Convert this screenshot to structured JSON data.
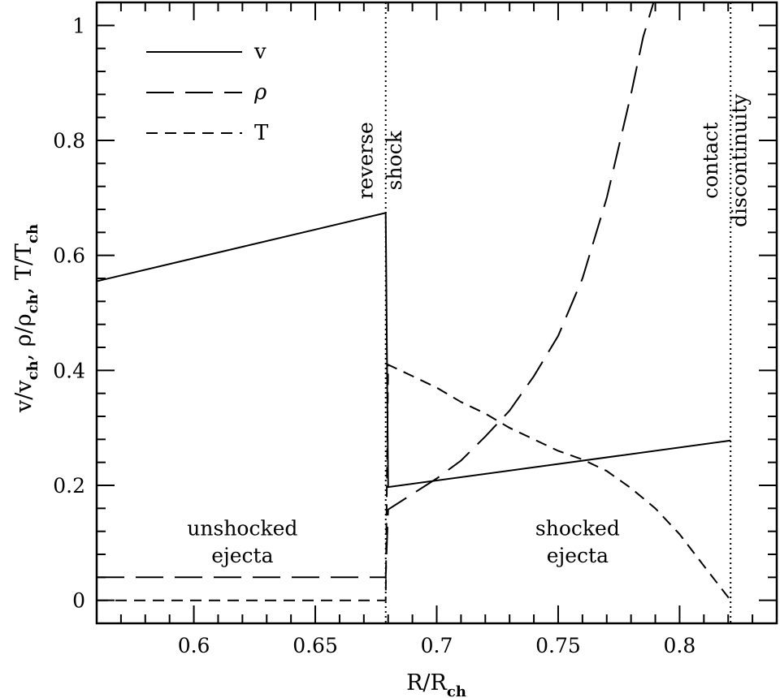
{
  "chart_data": {
    "type": "line",
    "xlabel": {
      "main": "R/R",
      "sub": "ch"
    },
    "ylabel": [
      {
        "main": "v/v",
        "sub": "ch",
        "sep": ",  "
      },
      {
        "main": "ρ/ρ",
        "sub": "ch",
        "sep": ",  "
      },
      {
        "main": "T/T",
        "sub": "ch",
        "sep": ""
      }
    ],
    "xlim": [
      0.56,
      0.84
    ],
    "ylim": [
      -0.04,
      1.04
    ],
    "xticks": [
      {
        "value": 0.6,
        "label": "0.6"
      },
      {
        "value": 0.65,
        "label": "0.65"
      },
      {
        "value": 0.7,
        "label": "0.7"
      },
      {
        "value": 0.75,
        "label": "0.75"
      },
      {
        "value": 0.8,
        "label": "0.8"
      }
    ],
    "yticks": [
      {
        "value": 0,
        "label": "0"
      },
      {
        "value": 0.2,
        "label": "0.2"
      },
      {
        "value": 0.4,
        "label": "0.4"
      },
      {
        "value": 0.6,
        "label": "0.6"
      },
      {
        "value": 0.8,
        "label": "0.8"
      },
      {
        "value": 1,
        "label": "1"
      }
    ],
    "grid": false,
    "legend_position": "top-left",
    "series": [
      {
        "name": "v",
        "style": "solid",
        "x": [
          0.56,
          0.679,
          0.68,
          0.821
        ],
        "y": [
          0.555,
          0.674,
          0.197,
          0.278
        ]
      },
      {
        "name": "ρ",
        "style": "long-dash",
        "x": [
          0.56,
          0.679,
          0.68,
          0.69,
          0.7,
          0.71,
          0.72,
          0.73,
          0.74,
          0.75,
          0.76,
          0.77,
          0.775,
          0.78,
          0.785,
          0.79
        ],
        "y": [
          0.04,
          0.04,
          0.158,
          0.185,
          0.212,
          0.243,
          0.285,
          0.33,
          0.39,
          0.46,
          0.56,
          0.7,
          0.79,
          0.88,
          0.98,
          1.05
        ]
      },
      {
        "name": "T",
        "style": "short-dash",
        "x": [
          0.56,
          0.679,
          0.68,
          0.69,
          0.7,
          0.71,
          0.72,
          0.73,
          0.74,
          0.75,
          0.76,
          0.77,
          0.78,
          0.79,
          0.8,
          0.81,
          0.821
        ],
        "y": [
          0.0,
          0.0,
          0.41,
          0.39,
          0.37,
          0.345,
          0.325,
          0.3,
          0.28,
          0.26,
          0.245,
          0.225,
          0.195,
          0.16,
          0.115,
          0.06,
          0.0
        ]
      }
    ],
    "vlines": [
      {
        "x": 0.679,
        "style": "dotted"
      },
      {
        "x": 0.821,
        "style": "dotted"
      }
    ],
    "annotations": [
      {
        "id": "reverse",
        "text": "reverse",
        "x": 0.6735,
        "y": 0.765,
        "rotate": -90
      },
      {
        "id": "shock",
        "text": "shock",
        "x": 0.6855,
        "y": 0.765,
        "rotate": -90
      },
      {
        "id": "contact",
        "text": "contact",
        "x": 0.8155,
        "y": 0.765,
        "rotate": -90
      },
      {
        "id": "discontinuity",
        "text": "discontinuity",
        "x": 0.8275,
        "y": 0.765,
        "rotate": -90
      },
      {
        "id": "unshocked",
        "text": "unshocked",
        "x": 0.62,
        "y": 0.113,
        "rotate": 0
      },
      {
        "id": "unshocked-ejecta",
        "text": "ejecta",
        "x": 0.62,
        "y": 0.066,
        "rotate": 0
      },
      {
        "id": "shocked",
        "text": "shocked",
        "x": 0.758,
        "y": 0.113,
        "rotate": 0
      },
      {
        "id": "shocked-ejecta",
        "text": "ejecta",
        "x": 0.758,
        "y": 0.066,
        "rotate": 0
      }
    ]
  }
}
